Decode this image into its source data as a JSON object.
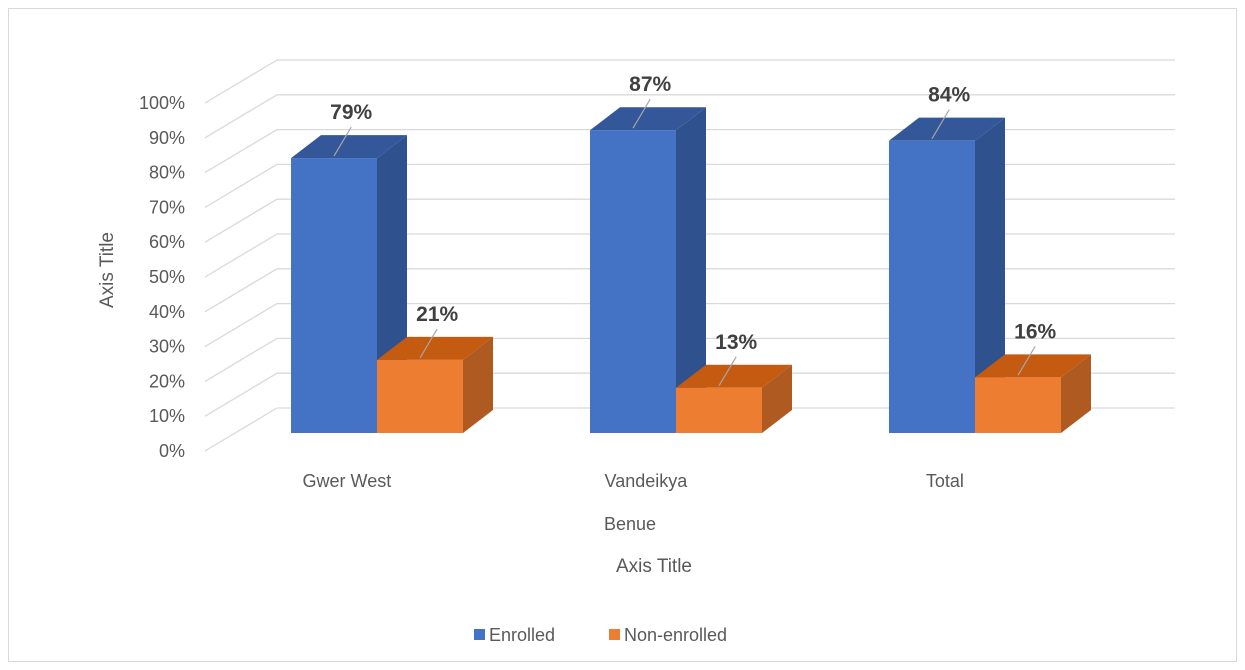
{
  "chart_data": {
    "type": "bar",
    "style": "3d-clustered-column",
    "categories": [
      "Gwer West",
      "Vandeikya",
      "Total"
    ],
    "group_label": "Benue",
    "series": [
      {
        "name": "Enrolled",
        "values": [
          79,
          87,
          84
        ],
        "labels": [
          "79%",
          "87%",
          "84%"
        ],
        "color": "#4472C4"
      },
      {
        "name": "Non-enrolled",
        "values": [
          21,
          13,
          16
        ],
        "labels": [
          "21%",
          "13%",
          "16%"
        ],
        "color": "#ED7D31"
      }
    ],
    "xlabel": "Axis Title",
    "ylabel": "Axis Title",
    "ylim": [
      0,
      100
    ],
    "yticks": [
      "0%",
      "10%",
      "20%",
      "30%",
      "40%",
      "50%",
      "60%",
      "70%",
      "80%",
      "90%",
      "100%"
    ],
    "grid": true,
    "legend": "bottom",
    "colors": {
      "enrolled_side": "#2F528F",
      "enrolled_top": "#34579A",
      "nonenrolled_side": "#AE5A21",
      "nonenrolled_top": "#C55A11",
      "grid": "#D9D9D9",
      "text": "#595959"
    }
  }
}
